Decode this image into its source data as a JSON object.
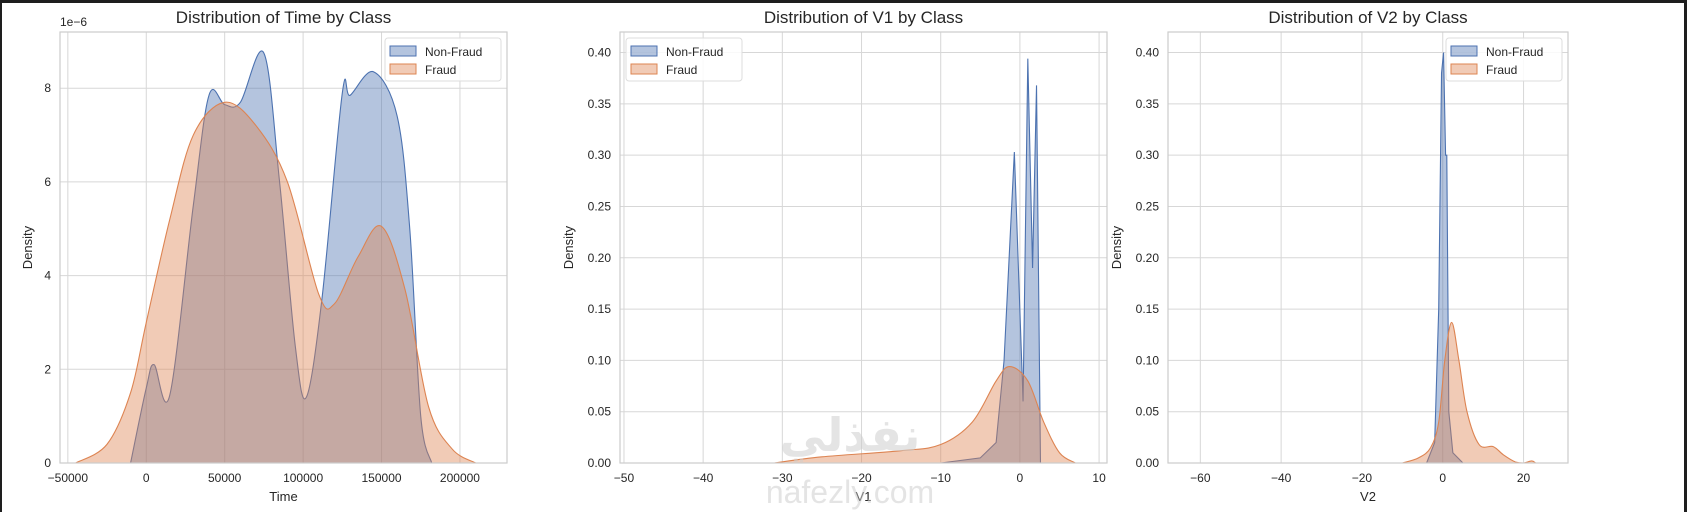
{
  "colors": {
    "non_fraud_fill": "#4c72b0",
    "non_fraud_line": "#4c72b0",
    "fraud_fill": "#dd8452",
    "fraud_line": "#dd8452",
    "grid": "#d7d7d7",
    "frame": "#cccccc",
    "background": "#ffffff"
  },
  "legend": {
    "items": [
      {
        "label": "Non-Fraud"
      },
      {
        "label": "Fraud"
      }
    ]
  },
  "watermark": {
    "arabic": "نفذلي",
    "latin": "nafezly.com"
  },
  "chart_data": [
    {
      "type": "area",
      "title": "Distribution of Time by Class",
      "xlabel": "Time",
      "ylabel": "Density",
      "y_offset_label": "1e−6",
      "xticks": [
        "−50000",
        "0",
        "50000",
        "100000",
        "150000",
        "200000"
      ],
      "yticks": [
        "0",
        "2",
        "4",
        "6",
        "8"
      ],
      "xlim": [
        -55000,
        230000
      ],
      "ylim": [
        0,
        9.2e-06
      ],
      "grid": true,
      "legend_position": "upper right",
      "series": [
        {
          "name": "Non-Fraud",
          "x": [
            -10000,
            0,
            5000,
            15000,
            30000,
            40000,
            50000,
            60000,
            75000,
            85000,
            95000,
            102000,
            112000,
            125000,
            130000,
            145000,
            160000,
            168000,
            175000,
            182000
          ],
          "y": [
            0,
            1.6e-06,
            2.1e-06,
            1.45e-06,
            5.5e-06,
            7.85e-06,
            7.65e-06,
            7.7e-06,
            8.75e-06,
            6e-06,
            2.5e-06,
            1.4e-06,
            3.5e-06,
            7.9e-06,
            7.85e-06,
            8.35e-06,
            7.4e-06,
            5e-06,
            1e-06,
            0
          ]
        },
        {
          "name": "Fraud",
          "x": [
            -45000,
            -25000,
            -10000,
            0,
            15000,
            30000,
            50000,
            70000,
            90000,
            110000,
            120000,
            135000,
            150000,
            165000,
            180000,
            195000,
            210000
          ],
          "y": [
            0,
            4e-07,
            1.5e-06,
            3e-06,
            5.2e-06,
            7e-06,
            7.7e-06,
            7.2e-06,
            6e-06,
            3.6e-06,
            3.4e-06,
            4.4e-06,
            5.05e-06,
            3.7e-06,
            1.2e-06,
            3e-07,
            0
          ]
        }
      ]
    },
    {
      "type": "area",
      "title": "Distribution of V1 by Class",
      "xlabel": "V1",
      "ylabel": "Density",
      "xticks": [
        "−50",
        "−40",
        "−30",
        "−20",
        "−10",
        "0",
        "10"
      ],
      "yticks": [
        "0.00",
        "0.05",
        "0.10",
        "0.15",
        "0.20",
        "0.25",
        "0.30",
        "0.35",
        "0.40"
      ],
      "xlim": [
        -50.5,
        11
      ],
      "ylim": [
        0,
        0.42
      ],
      "grid": true,
      "legend_position": "upper left",
      "series": [
        {
          "name": "Non-Fraud",
          "x": [
            -10,
            -5,
            -3,
            -2,
            -0.7,
            0.4,
            1.0,
            1.6,
            2.1,
            2.6,
            2.8
          ],
          "y": [
            0,
            0.005,
            0.02,
            0.1,
            0.303,
            0.06,
            0.394,
            0.19,
            0.368,
            0.0,
            0
          ]
        },
        {
          "name": "Fraud",
          "x": [
            -31,
            -25,
            -15,
            -10,
            -6,
            -3,
            -1.3,
            1,
            3,
            5,
            7
          ],
          "y": [
            0,
            0.006,
            0.012,
            0.018,
            0.04,
            0.08,
            0.094,
            0.08,
            0.04,
            0.01,
            0
          ]
        }
      ]
    },
    {
      "type": "area",
      "title": "Distribution of V2 by Class",
      "xlabel": "V2",
      "ylabel": "Density",
      "xticks": [
        "−60",
        "−40",
        "−20",
        "0",
        "20"
      ],
      "yticks": [
        "0.00",
        "0.05",
        "0.10",
        "0.15",
        "0.20",
        "0.25",
        "0.30",
        "0.35",
        "0.40"
      ],
      "xlim": [
        -68,
        31
      ],
      "ylim": [
        0,
        0.42
      ],
      "grid": true,
      "legend_position": "upper right",
      "series": [
        {
          "name": "Non-Fraud",
          "x": [
            -4,
            -2,
            -1,
            -0.3,
            0.2,
            0.7,
            1.0,
            1.5,
            2.5,
            5
          ],
          "y": [
            0,
            0.02,
            0.15,
            0.38,
            0.4,
            0.3,
            0.3,
            0.05,
            0.01,
            0
          ]
        },
        {
          "name": "Fraud",
          "x": [
            -10,
            -6,
            -3,
            -1,
            0.5,
            2.2,
            4,
            6,
            9,
            12.5,
            15,
            18,
            20,
            22,
            23
          ],
          "y": [
            0,
            0.005,
            0.015,
            0.04,
            0.1,
            0.137,
            0.1,
            0.05,
            0.018,
            0.016,
            0.008,
            0.001,
            0.0,
            0.002,
            0
          ]
        }
      ]
    }
  ]
}
